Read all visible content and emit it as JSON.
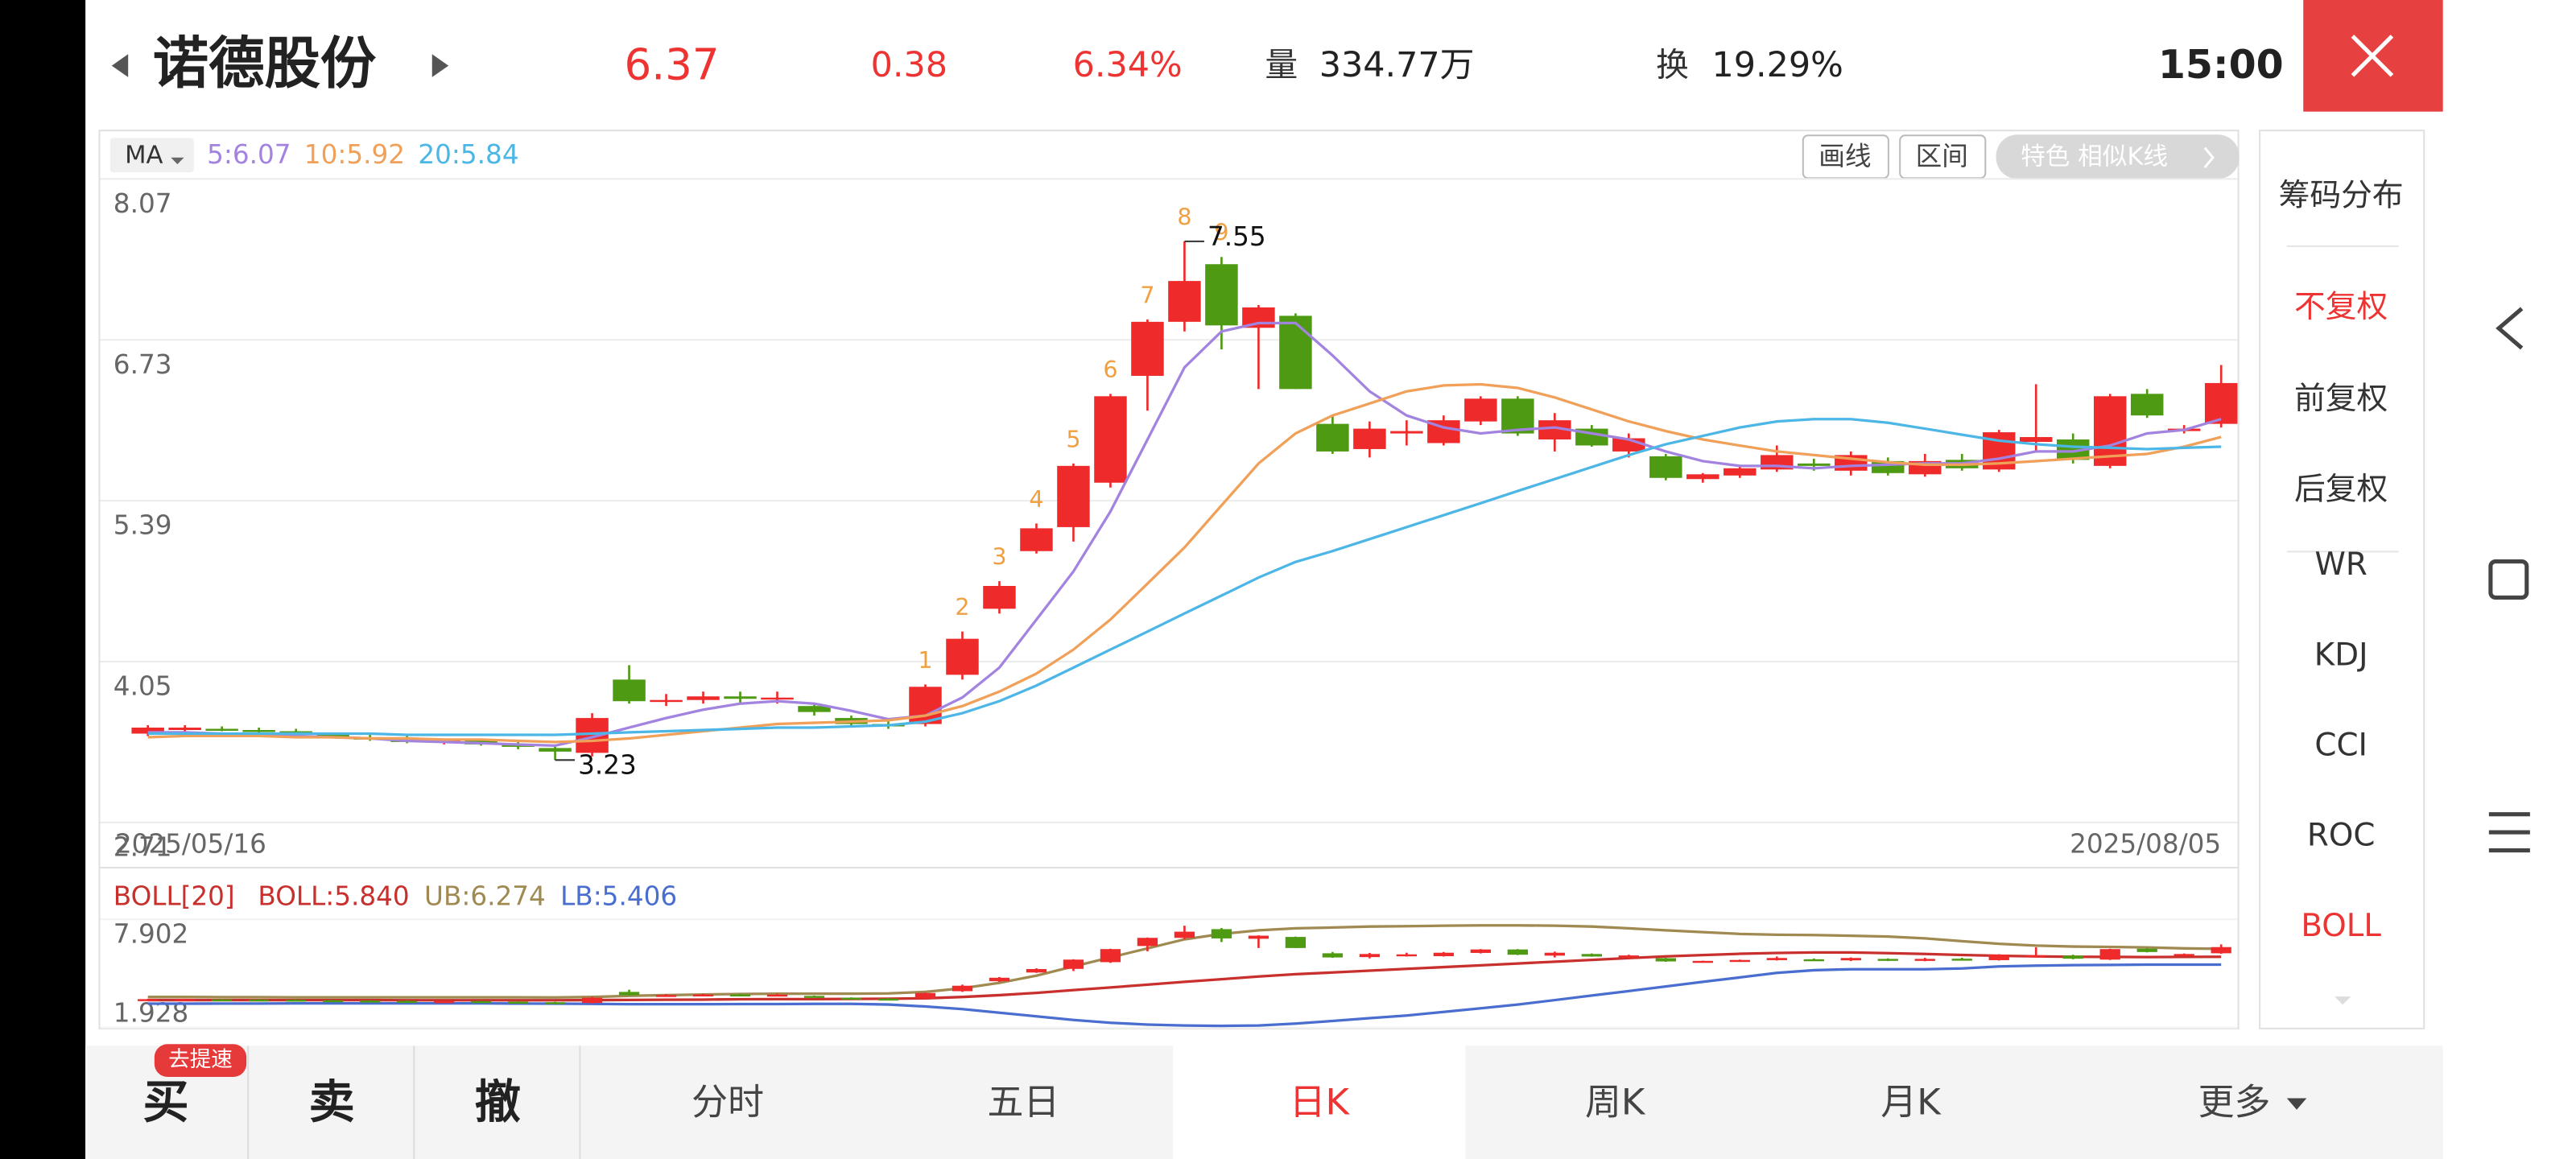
{
  "header": {
    "name": "诺德股份",
    "price": "6.37",
    "change": "0.38",
    "change_pct": "6.34%",
    "volume_label": "量",
    "volume": "334.77万",
    "turnover_label": "换",
    "turnover": "19.29%",
    "time": "15:00"
  },
  "toolbar": {
    "ma_button": "MA",
    "draw": "画线",
    "range": "区间",
    "feature": "特色  相似K线"
  },
  "side_menu": [
    {
      "label": "筹码分布",
      "active": false
    },
    {
      "label": "不复权",
      "active": true
    },
    {
      "label": "前复权",
      "active": false
    },
    {
      "label": "后复权",
      "active": false
    },
    {
      "label": "WR",
      "active": false
    },
    {
      "label": "KDJ",
      "active": false
    },
    {
      "label": "CCI",
      "active": false
    },
    {
      "label": "ROC",
      "active": false
    },
    {
      "label": "BOLL",
      "active": true
    }
  ],
  "tabs": [
    {
      "label": "买",
      "active": false
    },
    {
      "label": "卖",
      "active": false
    },
    {
      "label": "撤",
      "active": false
    },
    {
      "label": "分时",
      "active": false
    },
    {
      "label": "五日",
      "active": false
    },
    {
      "label": "日K",
      "active": true
    },
    {
      "label": "周K",
      "active": false
    },
    {
      "label": "月K",
      "active": false
    },
    {
      "label": "更多",
      "active": false
    }
  ],
  "badge": "去提速",
  "chart_data": [
    {
      "type": "candlestick",
      "up_color": "#ee2a2a",
      "down_color": "#4e9a13",
      "grid": true,
      "categories": [
        "2025/05/16",
        null,
        null,
        null,
        null,
        null,
        null,
        null,
        null,
        null,
        null,
        null,
        null,
        null,
        null,
        null,
        null,
        null,
        null,
        null,
        null,
        null,
        null,
        null,
        null,
        null,
        null,
        null,
        null,
        null,
        null,
        null,
        null,
        null,
        null,
        null,
        null,
        null,
        null,
        null,
        null,
        null,
        null,
        null,
        null,
        null,
        null,
        null,
        null,
        null,
        null,
        null,
        null,
        null,
        null,
        null,
        "2025/08/05"
      ],
      "open": [
        3.45,
        3.48,
        3.49,
        3.48,
        3.47,
        3.44,
        3.42,
        3.4,
        3.38,
        3.39,
        3.36,
        3.33,
        3.29,
        3.9,
        3.72,
        3.73,
        3.76,
        3.74,
        3.68,
        3.58,
        3.53,
        3.53,
        3.94,
        4.49,
        4.97,
        5.17,
        5.54,
        6.43,
        6.88,
        7.36,
        6.83,
        6.93,
        6.03,
        5.82,
        5.95,
        5.87,
        6.05,
        6.24,
        5.9,
        5.99,
        5.8,
        5.76,
        5.57,
        5.6,
        5.65,
        5.7,
        5.64,
        5.72,
        5.61,
        5.73,
        5.65,
        5.88,
        5.9,
        5.68,
        6.28,
        5.97,
        6.03
      ],
      "high": [
        3.52,
        3.52,
        3.51,
        3.5,
        3.49,
        3.46,
        3.44,
        3.43,
        3.41,
        3.41,
        3.38,
        3.35,
        3.62,
        4.02,
        3.78,
        3.8,
        3.8,
        3.8,
        3.7,
        3.6,
        3.56,
        3.86,
        4.3,
        4.72,
        5.2,
        5.7,
        6.28,
        6.9,
        7.55,
        7.42,
        7.02,
        6.95,
        6.1,
        6.05,
        6.06,
        6.1,
        6.26,
        6.26,
        6.12,
        6.02,
        5.95,
        5.78,
        5.62,
        5.68,
        5.85,
        5.74,
        5.8,
        5.75,
        5.78,
        5.78,
        5.98,
        6.36,
        5.95,
        6.28,
        6.32,
        6.02,
        6.52
      ],
      "low": [
        3.43,
        3.46,
        3.47,
        3.46,
        3.43,
        3.41,
        3.39,
        3.37,
        3.36,
        3.35,
        3.32,
        3.23,
        3.26,
        3.7,
        3.68,
        3.7,
        3.7,
        3.7,
        3.6,
        3.5,
        3.49,
        3.51,
        3.9,
        4.45,
        4.95,
        5.05,
        5.5,
        6.14,
        6.8,
        6.65,
        6.32,
        6.32,
        5.78,
        5.75,
        5.85,
        5.85,
        6.02,
        5.93,
        5.8,
        5.84,
        5.75,
        5.56,
        5.54,
        5.58,
        5.63,
        5.64,
        5.6,
        5.6,
        5.59,
        5.64,
        5.63,
        5.8,
        5.7,
        5.66,
        6.08,
        5.95,
        6.0
      ],
      "close": [
        3.5,
        3.5,
        3.48,
        3.47,
        3.44,
        3.42,
        3.4,
        3.38,
        3.39,
        3.36,
        3.34,
        3.3,
        3.58,
        3.72,
        3.73,
        3.76,
        3.74,
        3.75,
        3.63,
        3.53,
        3.51,
        3.84,
        4.24,
        4.68,
        5.16,
        5.68,
        6.26,
        6.88,
        7.22,
        6.85,
        7.0,
        6.32,
        5.8,
        5.99,
        5.97,
        6.06,
        6.24,
        5.95,
        6.06,
        5.85,
        5.91,
        5.58,
        5.61,
        5.66,
        5.77,
        5.68,
        5.77,
        5.62,
        5.72,
        5.66,
        5.96,
        5.92,
        5.73,
        6.26,
        6.1,
        5.99,
        6.37
      ],
      "sequence_labels": [
        null,
        null,
        null,
        null,
        null,
        null,
        null,
        null,
        null,
        null,
        null,
        null,
        null,
        null,
        null,
        null,
        null,
        null,
        null,
        null,
        null,
        "1",
        "2",
        "3",
        "4",
        "5",
        "6",
        "7",
        "8",
        "9",
        null,
        null,
        null,
        null,
        null,
        null,
        null,
        null,
        null,
        null,
        null,
        null,
        null,
        null,
        null,
        null,
        null,
        null,
        null,
        null,
        null,
        null,
        null,
        null,
        null,
        null,
        null
      ],
      "series": [
        {
          "name": "5:6.07",
          "color": "#a283e0",
          "values": [
            3.46,
            3.46,
            3.45,
            3.44,
            3.43,
            3.42,
            3.41,
            3.39,
            3.38,
            3.37,
            3.36,
            3.35,
            3.42,
            3.5,
            3.58,
            3.65,
            3.7,
            3.72,
            3.7,
            3.64,
            3.57,
            3.6,
            3.75,
            4.0,
            4.4,
            4.8,
            5.3,
            5.9,
            6.5,
            6.8,
            6.87,
            6.87,
            6.6,
            6.3,
            6.1,
            6.0,
            5.95,
            5.98,
            6.0,
            5.95,
            5.9,
            5.8,
            5.72,
            5.68,
            5.68,
            5.66,
            5.68,
            5.69,
            5.7,
            5.7,
            5.74,
            5.8,
            5.8,
            5.85,
            5.95,
            5.98,
            6.07
          ]
        },
        {
          "name": "10:5.92",
          "color": "#f0a058",
          "values": [
            3.42,
            3.43,
            3.43,
            3.43,
            3.42,
            3.42,
            3.41,
            3.41,
            3.4,
            3.4,
            3.39,
            3.38,
            3.39,
            3.41,
            3.44,
            3.47,
            3.5,
            3.53,
            3.54,
            3.55,
            3.56,
            3.6,
            3.68,
            3.8,
            3.95,
            4.15,
            4.4,
            4.7,
            5.0,
            5.35,
            5.7,
            5.95,
            6.1,
            6.2,
            6.3,
            6.35,
            6.36,
            6.33,
            6.25,
            6.15,
            6.05,
            5.97,
            5.9,
            5.85,
            5.8,
            5.77,
            5.74,
            5.71,
            5.69,
            5.69,
            5.7,
            5.72,
            5.74,
            5.76,
            5.78,
            5.84,
            5.92
          ]
        },
        {
          "name": "20:5.84",
          "color": "#4cb6e6",
          "values": [
            3.45,
            3.45,
            3.45,
            3.45,
            3.45,
            3.45,
            3.45,
            3.44,
            3.44,
            3.44,
            3.44,
            3.44,
            3.45,
            3.46,
            3.47,
            3.48,
            3.49,
            3.5,
            3.5,
            3.51,
            3.52,
            3.55,
            3.62,
            3.72,
            3.85,
            4.0,
            4.15,
            4.3,
            4.45,
            4.6,
            4.75,
            4.88,
            4.97,
            5.07,
            5.17,
            5.27,
            5.37,
            5.47,
            5.57,
            5.67,
            5.77,
            5.86,
            5.93,
            6.0,
            6.05,
            6.07,
            6.07,
            6.04,
            5.99,
            5.94,
            5.89,
            5.86,
            5.84,
            5.83,
            5.82,
            5.83,
            5.84
          ]
        }
      ],
      "ylim": [
        2.71,
        8.07
      ],
      "yticks": [
        8.07,
        6.73,
        5.39,
        4.05,
        2.71
      ]
    },
    {
      "type": "boll",
      "title": "BOLL[20]",
      "ylim": [
        1.928,
        7.902
      ],
      "yticks": [
        7.902,
        1.928
      ],
      "series": [
        {
          "name": "BOLL:5.840",
          "color": "#c8302e",
          "values": [
            3.45,
            3.45,
            3.45,
            3.45,
            3.45,
            3.45,
            3.45,
            3.44,
            3.44,
            3.44,
            3.44,
            3.44,
            3.45,
            3.46,
            3.47,
            3.48,
            3.49,
            3.5,
            3.5,
            3.51,
            3.52,
            3.55,
            3.62,
            3.72,
            3.85,
            4.0,
            4.15,
            4.3,
            4.45,
            4.6,
            4.75,
            4.88,
            4.97,
            5.07,
            5.17,
            5.27,
            5.37,
            5.47,
            5.57,
            5.67,
            5.77,
            5.86,
            5.93,
            6.0,
            6.05,
            6.07,
            6.07,
            6.04,
            5.99,
            5.94,
            5.89,
            5.86,
            5.84,
            5.83,
            5.82,
            5.83,
            5.84
          ]
        },
        {
          "name": "UB:6.274",
          "color": "#a08a52",
          "values": [
            3.62,
            3.62,
            3.61,
            3.61,
            3.6,
            3.6,
            3.6,
            3.6,
            3.6,
            3.6,
            3.6,
            3.59,
            3.62,
            3.68,
            3.72,
            3.76,
            3.78,
            3.8,
            3.8,
            3.8,
            3.82,
            3.9,
            4.1,
            4.4,
            4.8,
            5.3,
            5.8,
            6.3,
            6.8,
            7.1,
            7.3,
            7.4,
            7.45,
            7.5,
            7.52,
            7.55,
            7.57,
            7.57,
            7.55,
            7.5,
            7.4,
            7.3,
            7.2,
            7.1,
            7.05,
            7.03,
            7.0,
            6.95,
            6.85,
            6.7,
            6.55,
            6.45,
            6.4,
            6.38,
            6.35,
            6.3,
            6.274
          ]
        },
        {
          "name": "LB:5.406",
          "color": "#4a6ed0",
          "values": [
            3.25,
            3.25,
            3.26,
            3.26,
            3.27,
            3.27,
            3.27,
            3.27,
            3.27,
            3.27,
            3.26,
            3.25,
            3.24,
            3.22,
            3.22,
            3.22,
            3.23,
            3.23,
            3.24,
            3.24,
            3.2,
            3.1,
            2.95,
            2.75,
            2.55,
            2.35,
            2.2,
            2.1,
            2.05,
            2.03,
            2.05,
            2.15,
            2.3,
            2.45,
            2.6,
            2.8,
            3.0,
            3.2,
            3.45,
            3.7,
            3.95,
            4.2,
            4.45,
            4.7,
            4.95,
            5.1,
            5.15,
            5.15,
            5.15,
            5.2,
            5.3,
            5.35,
            5.38,
            5.39,
            5.4,
            5.4,
            5.406
          ]
        }
      ]
    }
  ]
}
